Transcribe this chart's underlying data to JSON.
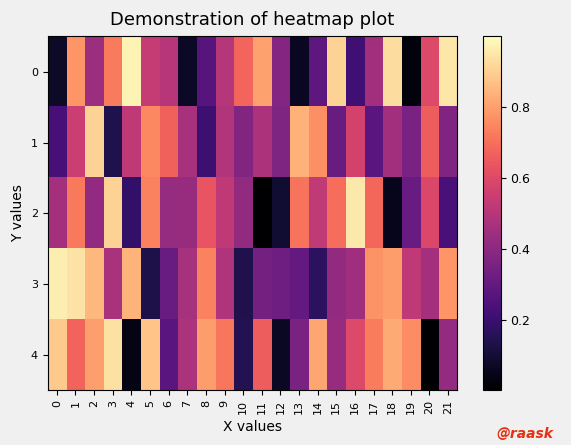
{
  "title": "Demonstration of heatmap plot",
  "xlabel": "X values",
  "ylabel": "Y values",
  "nrows": 5,
  "ncols": 22,
  "random_seed": 7,
  "cmap": "magma",
  "vmin": 0.0,
  "vmax": 1.0,
  "colorbar_ticks": [
    0.2,
    0.4,
    0.6,
    0.8
  ],
  "x_tick_labels": [
    "0",
    "1",
    "2",
    "3",
    "4",
    "5",
    "6",
    "7",
    "8",
    "9",
    "10",
    "11",
    "12",
    "13",
    "14",
    "15",
    "16",
    "17",
    "18",
    "19",
    "20",
    "21"
  ],
  "y_tick_labels": [
    "0",
    "1",
    "2",
    "3",
    "4"
  ],
  "watermark_text": "@raask",
  "watermark_color": "#e63012",
  "background_color": "#f0f0f0",
  "figsize": [
    5.71,
    4.45
  ],
  "dpi": 100,
  "title_fontsize": 13,
  "axis_label_fontsize": 10,
  "tick_fontsize": 8,
  "cbar_tick_fontsize": 9
}
